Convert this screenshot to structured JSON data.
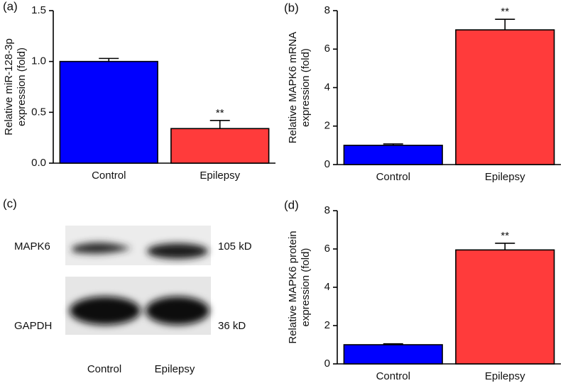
{
  "chart_data": [
    {
      "type": "bar",
      "panel_label": "(a)",
      "ylabel": [
        "Relative miR-128-3p",
        "expression (fold)"
      ],
      "categories": [
        "Control",
        "Epilepsy"
      ],
      "values": [
        1.0,
        0.34
      ],
      "errors": [
        0.03,
        0.08
      ],
      "colors": [
        "#0000ff",
        "#ff3b3b"
      ],
      "significance": [
        null,
        "**"
      ],
      "ylim": [
        0,
        1.5
      ],
      "yticks": [
        {
          "value": 0,
          "label": "0.0"
        },
        0.5,
        {
          "value": 1,
          "label": "1.0"
        },
        1.5
      ]
    },
    {
      "type": "bar",
      "panel_label": "(b)",
      "ylabel": [
        "Relative MAPK6 mRNA",
        "expression (fold)"
      ],
      "categories": [
        "Control",
        "Epilepsy"
      ],
      "values": [
        1.0,
        7.0
      ],
      "errors": [
        0.07,
        0.55
      ],
      "colors": [
        "#0000ff",
        "#ff3b3b"
      ],
      "significance": [
        null,
        "**"
      ],
      "ylim": [
        0,
        8
      ],
      "yticks": [
        0,
        2,
        4,
        6,
        8
      ]
    },
    {
      "type": "bar",
      "panel_label": "(d)",
      "ylabel": [
        "Relative MAPK6 protein",
        "expression (fold)"
      ],
      "categories": [
        "Control",
        "Epilepsy"
      ],
      "values": [
        1.0,
        5.95
      ],
      "errors": [
        0.05,
        0.35
      ],
      "colors": [
        "#0000ff",
        "#ff3b3b"
      ],
      "significance": [
        null,
        "**"
      ],
      "ylim": [
        0,
        8
      ],
      "yticks": [
        0,
        2,
        4,
        6,
        8
      ]
    }
  ],
  "blot": {
    "panel_label": "(c)",
    "rows": [
      {
        "protein": "MAPK6",
        "size": "105 kD"
      },
      {
        "protein": "GAPDH",
        "size": "36 kD"
      }
    ],
    "lanes": [
      "Control",
      "Epilepsy"
    ]
  }
}
